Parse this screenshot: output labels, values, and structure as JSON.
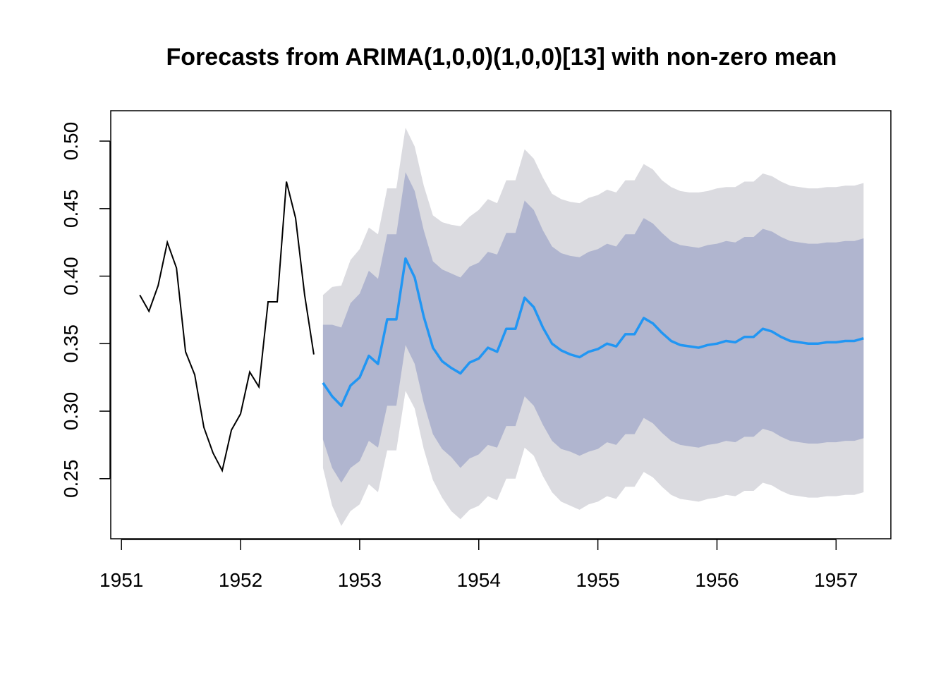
{
  "chart_data": {
    "type": "line",
    "title": "Forecasts from ARIMA(1,0,0)(1,0,0)[13] with non-zero mean",
    "xlabel": "",
    "ylabel": "",
    "xlim": [
      1950.91,
      1957.46
    ],
    "ylim": [
      0.2055,
      0.5225
    ],
    "x_ticks": [
      1951,
      1952,
      1953,
      1954,
      1955,
      1956,
      1957
    ],
    "x_tick_labels": [
      "1951",
      "1952",
      "1953",
      "1954",
      "1955",
      "1956",
      "1957"
    ],
    "y_ticks": [
      0.25,
      0.3,
      0.35,
      0.4,
      0.45,
      0.5
    ],
    "y_tick_labels": [
      "0.25",
      "0.30",
      "0.35",
      "0.40",
      "0.45",
      "0.50"
    ],
    "colors": {
      "observed": "#000000",
      "forecast": "#2196f3",
      "band_80": "#b0b5cf",
      "band_95": "#dbdbe0"
    },
    "observed": {
      "x": [
        1951.154,
        1951.231,
        1951.308,
        1951.385,
        1951.462,
        1951.538,
        1951.615,
        1951.692,
        1951.769,
        1951.846,
        1951.923,
        1952.0,
        1952.077,
        1952.154,
        1952.231,
        1952.308,
        1952.385,
        1952.462,
        1952.538,
        1952.615
      ],
      "y": [
        0.386,
        0.374,
        0.393,
        0.425,
        0.406,
        0.344,
        0.327,
        0.288,
        0.269,
        0.256,
        0.286,
        0.298,
        0.329,
        0.318,
        0.381,
        0.381,
        0.47,
        0.443,
        0.386,
        0.342
      ]
    },
    "forecast": {
      "x": [
        1952.692,
        1952.769,
        1952.846,
        1952.923,
        1953.0,
        1953.077,
        1953.154,
        1953.231,
        1953.308,
        1953.385,
        1953.462,
        1953.538,
        1953.615,
        1953.692,
        1953.769,
        1953.846,
        1953.923,
        1954.0,
        1954.077,
        1954.154,
        1954.231,
        1954.308,
        1954.385,
        1954.462,
        1954.538,
        1954.615,
        1954.692,
        1954.769,
        1954.846,
        1954.923,
        1955.0,
        1955.077,
        1955.154,
        1955.231,
        1955.308,
        1955.385,
        1955.462,
        1955.538,
        1955.615,
        1955.692,
        1955.769,
        1955.846,
        1955.923,
        1956.0,
        1956.077,
        1956.154,
        1956.231,
        1956.308,
        1956.385,
        1956.462,
        1956.538,
        1956.615,
        1956.692,
        1956.769,
        1956.846,
        1956.923,
        1957.0,
        1957.077,
        1957.154,
        1957.231
      ],
      "mean": [
        0.321,
        0.311,
        0.304,
        0.319,
        0.325,
        0.341,
        0.335,
        0.368,
        0.368,
        0.413,
        0.399,
        0.37,
        0.347,
        0.337,
        0.332,
        0.328,
        0.336,
        0.339,
        0.347,
        0.344,
        0.361,
        0.361,
        0.384,
        0.377,
        0.362,
        0.35,
        0.345,
        0.342,
        0.34,
        0.344,
        0.346,
        0.35,
        0.348,
        0.357,
        0.357,
        0.369,
        0.365,
        0.358,
        0.352,
        0.349,
        0.348,
        0.347,
        0.349,
        0.35,
        0.352,
        0.351,
        0.355,
        0.355,
        0.361,
        0.359,
        0.355,
        0.352,
        0.351,
        0.35,
        0.35,
        0.351,
        0.351,
        0.352,
        0.352,
        0.354
      ],
      "lo80": [
        0.279,
        0.258,
        0.247,
        0.258,
        0.263,
        0.278,
        0.273,
        0.304,
        0.304,
        0.349,
        0.335,
        0.306,
        0.283,
        0.272,
        0.266,
        0.258,
        0.265,
        0.268,
        0.275,
        0.273,
        0.289,
        0.289,
        0.311,
        0.304,
        0.29,
        0.278,
        0.272,
        0.27,
        0.267,
        0.27,
        0.272,
        0.277,
        0.275,
        0.283,
        0.283,
        0.295,
        0.291,
        0.284,
        0.278,
        0.275,
        0.274,
        0.273,
        0.275,
        0.276,
        0.278,
        0.277,
        0.281,
        0.281,
        0.287,
        0.285,
        0.281,
        0.278,
        0.277,
        0.276,
        0.276,
        0.277,
        0.277,
        0.278,
        0.278,
        0.28
      ],
      "hi80": [
        0.364,
        0.364,
        0.362,
        0.38,
        0.387,
        0.404,
        0.398,
        0.431,
        0.431,
        0.477,
        0.463,
        0.434,
        0.411,
        0.405,
        0.402,
        0.399,
        0.407,
        0.41,
        0.418,
        0.416,
        0.432,
        0.432,
        0.456,
        0.449,
        0.434,
        0.422,
        0.417,
        0.415,
        0.414,
        0.418,
        0.42,
        0.424,
        0.422,
        0.431,
        0.431,
        0.443,
        0.439,
        0.432,
        0.426,
        0.423,
        0.422,
        0.421,
        0.423,
        0.424,
        0.426,
        0.425,
        0.429,
        0.429,
        0.435,
        0.433,
        0.429,
        0.426,
        0.425,
        0.424,
        0.424,
        0.425,
        0.425,
        0.426,
        0.426,
        0.428
      ],
      "lo95": [
        0.258,
        0.23,
        0.215,
        0.226,
        0.231,
        0.246,
        0.24,
        0.271,
        0.271,
        0.315,
        0.302,
        0.272,
        0.249,
        0.236,
        0.226,
        0.22,
        0.227,
        0.23,
        0.237,
        0.234,
        0.25,
        0.25,
        0.273,
        0.267,
        0.252,
        0.24,
        0.233,
        0.23,
        0.227,
        0.231,
        0.233,
        0.237,
        0.235,
        0.244,
        0.244,
        0.255,
        0.251,
        0.244,
        0.238,
        0.235,
        0.234,
        0.233,
        0.235,
        0.236,
        0.238,
        0.237,
        0.241,
        0.241,
        0.247,
        0.245,
        0.241,
        0.238,
        0.237,
        0.236,
        0.236,
        0.237,
        0.237,
        0.238,
        0.238,
        0.24
      ],
      "hi95": [
        0.386,
        0.392,
        0.393,
        0.412,
        0.42,
        0.436,
        0.431,
        0.465,
        0.465,
        0.51,
        0.496,
        0.467,
        0.445,
        0.44,
        0.438,
        0.437,
        0.444,
        0.449,
        0.457,
        0.454,
        0.471,
        0.471,
        0.494,
        0.487,
        0.473,
        0.461,
        0.457,
        0.455,
        0.454,
        0.458,
        0.46,
        0.464,
        0.462,
        0.471,
        0.471,
        0.483,
        0.479,
        0.471,
        0.466,
        0.463,
        0.462,
        0.462,
        0.463,
        0.465,
        0.466,
        0.466,
        0.47,
        0.47,
        0.476,
        0.474,
        0.47,
        0.467,
        0.466,
        0.465,
        0.465,
        0.466,
        0.466,
        0.467,
        0.467,
        0.469
      ]
    }
  }
}
